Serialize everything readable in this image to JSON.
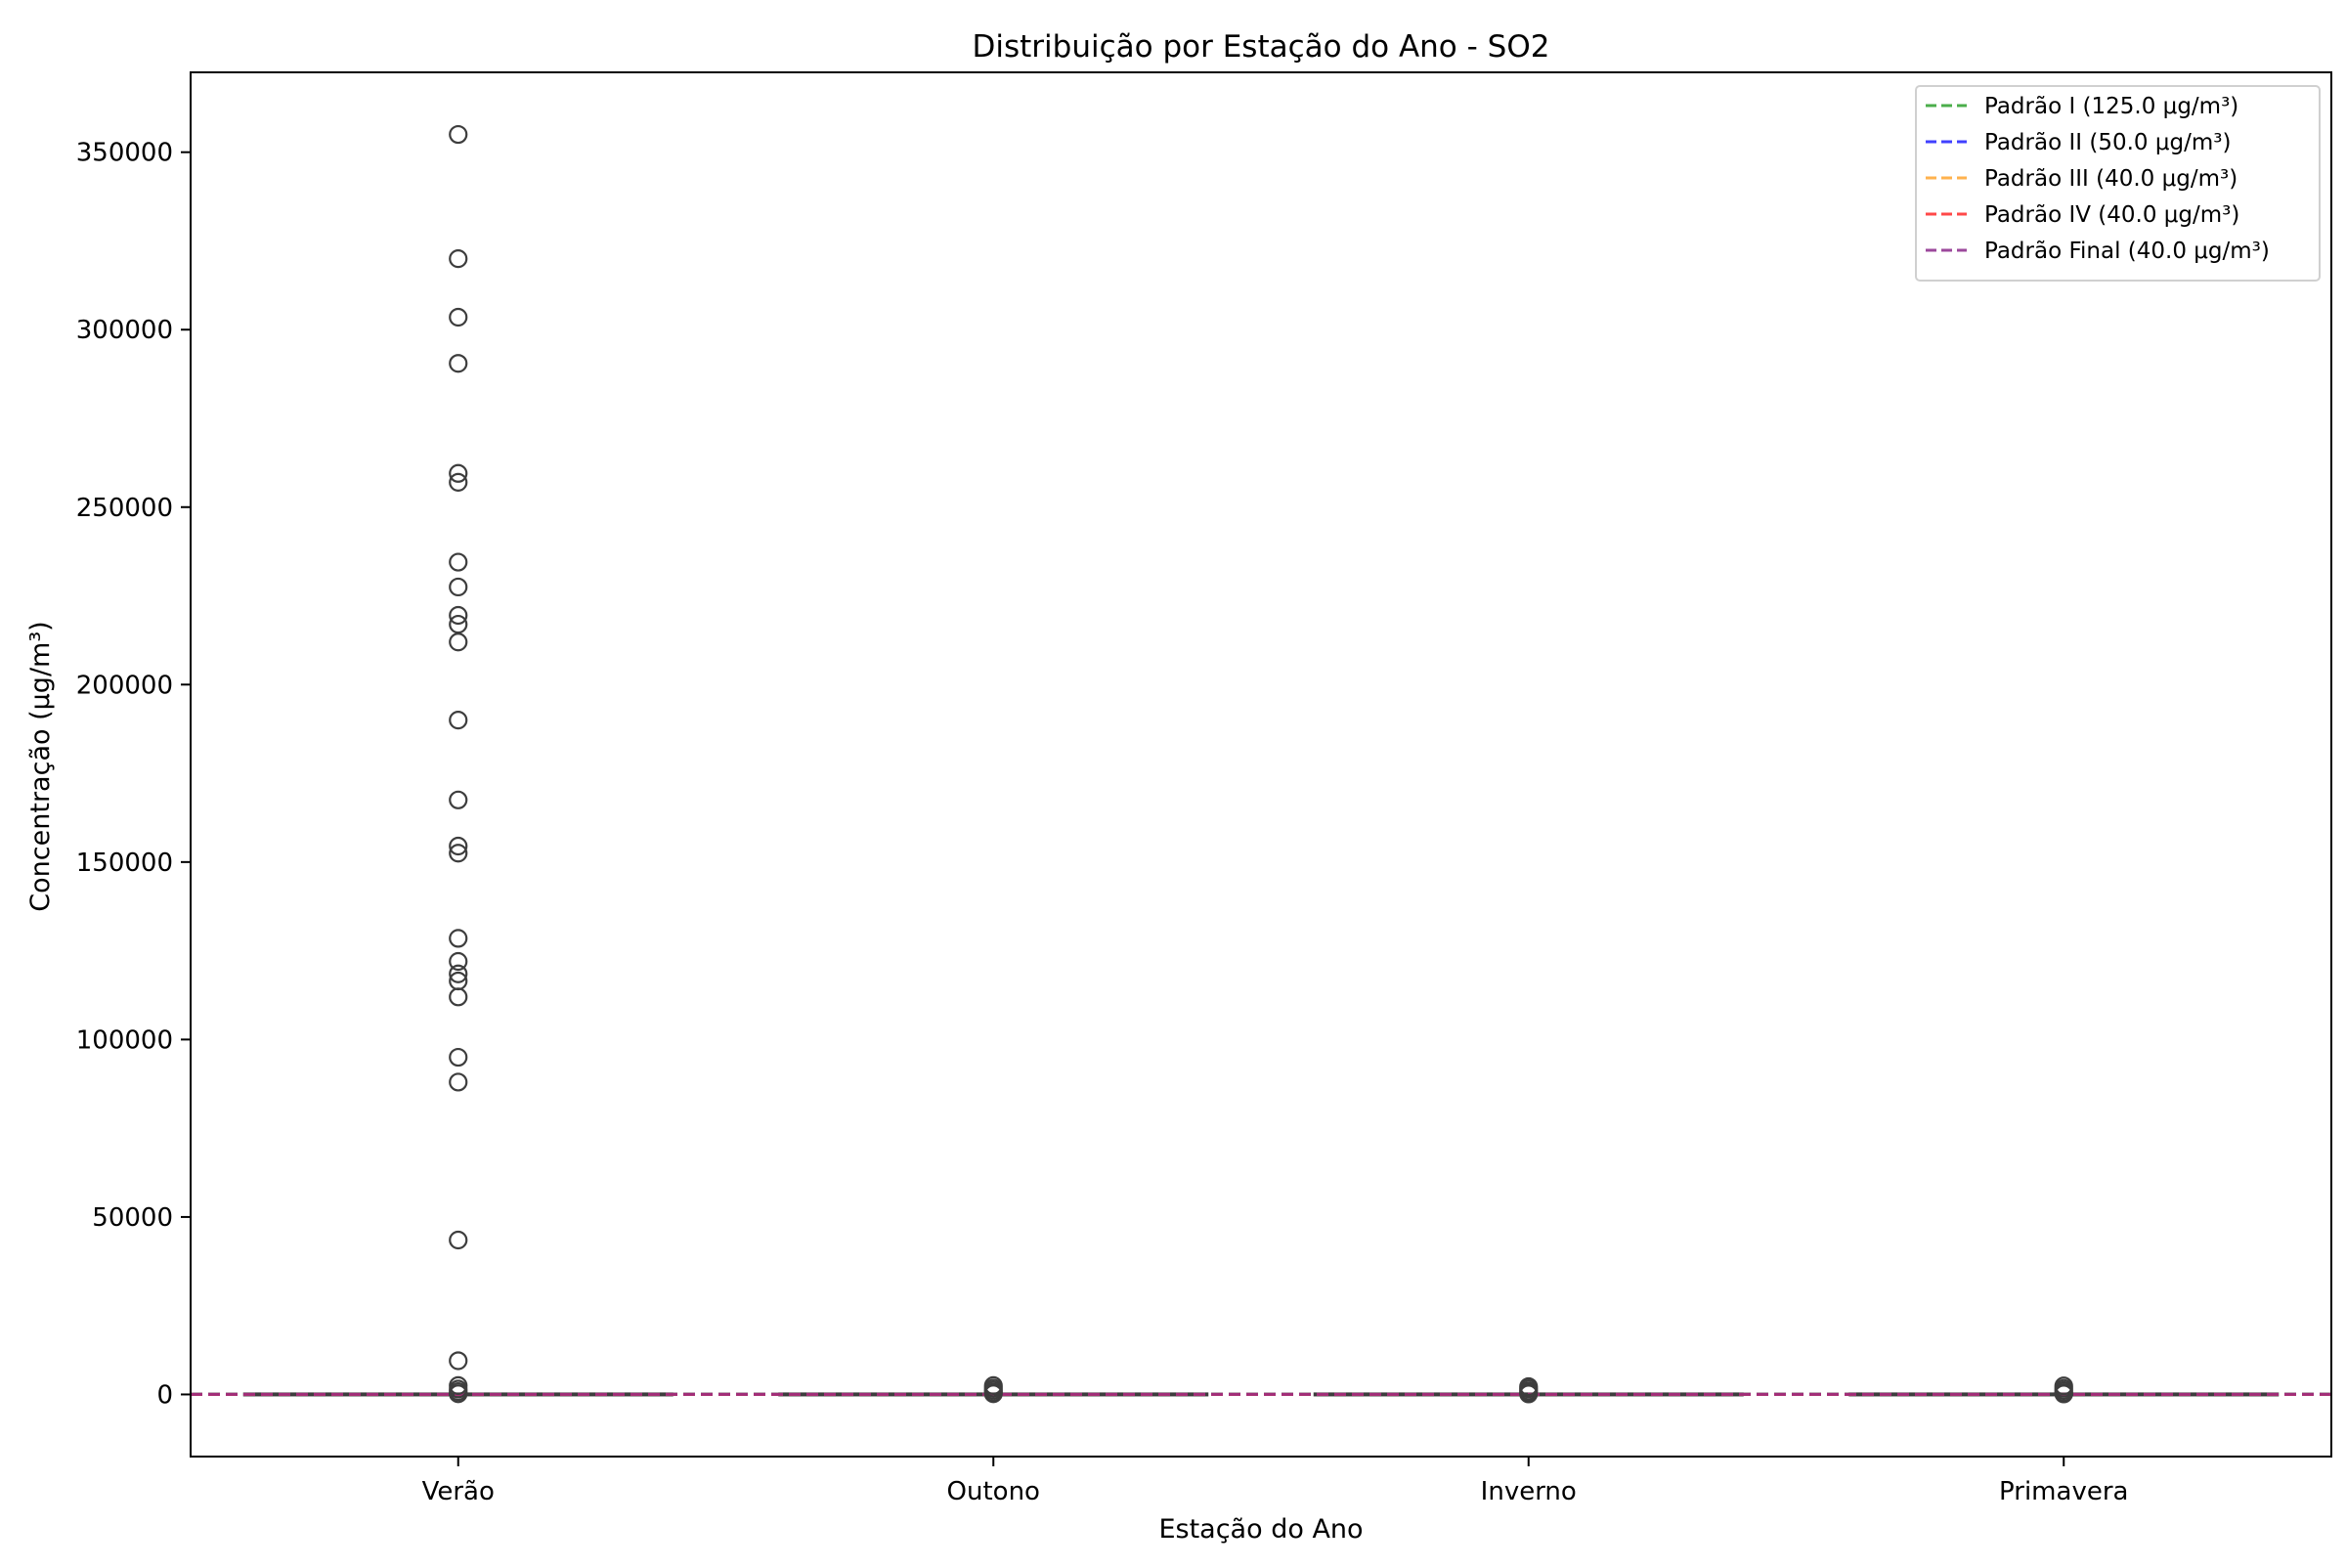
{
  "chart_data": {
    "type": "box",
    "title": "Distribuição por Estação do Ano - SO2",
    "xlabel": "Estação do Ano",
    "ylabel": "Concentração (μg/m³)",
    "ylim": [
      -17500,
      372500
    ],
    "yticks": [
      0,
      50000,
      100000,
      150000,
      200000,
      250000,
      300000,
      350000
    ],
    "ytick_labels": [
      "0",
      "50000",
      "100000",
      "150000",
      "200000",
      "250000",
      "300000",
      "350000"
    ],
    "grid": false,
    "legend_position": "top-right",
    "categories": [
      "Verão",
      "Outono",
      "Inverno",
      "Primavera"
    ],
    "boxes": [
      {
        "category": "Verão",
        "q1": 5,
        "median": 10,
        "q3": 20,
        "whisker_low": 0,
        "whisker_high": 45
      },
      {
        "category": "Outono",
        "q1": 5,
        "median": 10,
        "q3": 20,
        "whisker_low": 0,
        "whisker_high": 45
      },
      {
        "category": "Inverno",
        "q1": 5,
        "median": 10,
        "q3": 20,
        "whisker_low": 0,
        "whisker_high": 45
      },
      {
        "category": "Primavera",
        "q1": 5,
        "median": 10,
        "q3": 20,
        "whisker_low": 0,
        "whisker_high": 45
      }
    ],
    "outliers": [
      {
        "category": "Verão",
        "values": [
          355000,
          320000,
          303500,
          290500,
          259500,
          257000,
          234500,
          227500,
          219500,
          217000,
          212000,
          190000,
          167500,
          154500,
          152500,
          128500,
          122000,
          118500,
          116500,
          112000,
          95000,
          88000,
          43500,
          9500,
          2500,
          1500,
          800,
          200
        ]
      },
      {
        "category": "Outono",
        "values": [
          2500,
          1800,
          1200,
          600,
          200
        ]
      },
      {
        "category": "Inverno",
        "values": [
          2200,
          1600,
          1000,
          500,
          150
        ]
      },
      {
        "category": "Primavera",
        "values": [
          2400,
          1700,
          1100,
          500,
          150
        ]
      }
    ],
    "reference_lines": [
      {
        "name": "Padrão I (125.0 μg/m³)",
        "value": 125.0,
        "color": "#2ca02c"
      },
      {
        "name": "Padrão II (50.0 μg/m³)",
        "value": 50.0,
        "color": "#1f1fff"
      },
      {
        "name": "Padrão III (40.0 μg/m³)",
        "value": 40.0,
        "color": "#ffa530"
      },
      {
        "name": "Padrão IV (40.0 μg/m³)",
        "value": 40.0,
        "color": "#ff2a2a"
      },
      {
        "name": "Padrão Final (40.0 μg/m³)",
        "value": 40.0,
        "color": "#8b2a8b"
      }
    ]
  }
}
